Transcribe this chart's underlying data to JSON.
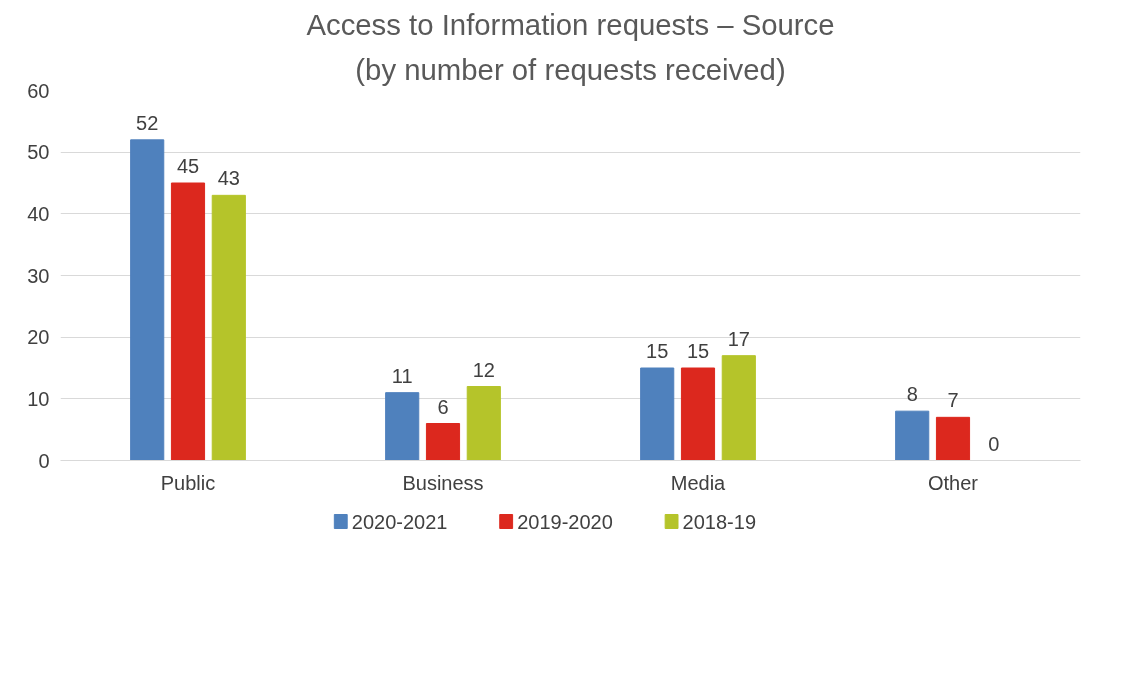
{
  "chart_data": {
    "type": "bar",
    "title": "Access to Information requests – Source",
    "subtitle": "(by number of requests received)",
    "categories": [
      "Public",
      "Business",
      "Media",
      "Other"
    ],
    "series": [
      {
        "name": "2020-2021",
        "color": "#4f81bd",
        "values": [
          52,
          11,
          15,
          8
        ]
      },
      {
        "name": "2019-2020",
        "color": "#dc281e",
        "values": [
          45,
          6,
          15,
          7
        ]
      },
      {
        "name": "2018-19",
        "color": "#b5c42a",
        "values": [
          43,
          12,
          17,
          0
        ]
      }
    ],
    "ylim": [
      0,
      60
    ],
    "yticks": [
      0,
      10,
      20,
      30,
      40,
      50,
      60
    ],
    "grid": "y",
    "legend": "bottom",
    "data_labels": true
  }
}
